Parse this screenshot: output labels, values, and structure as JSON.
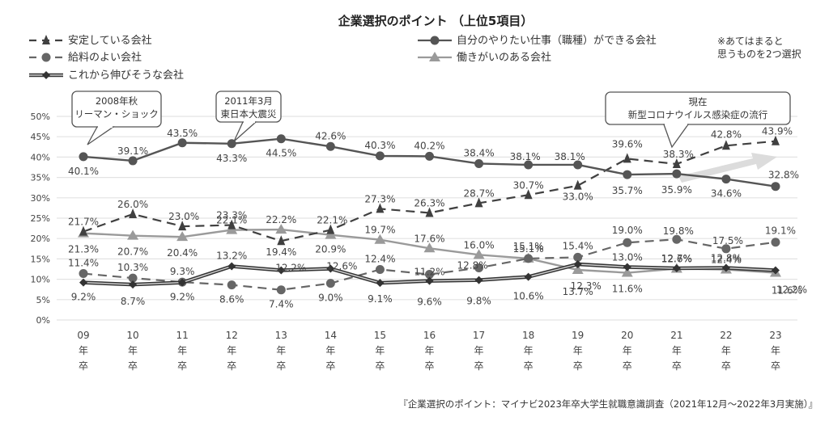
{
  "chart_data": {
    "type": "line",
    "title": "企業選択のポイント （上位5項目）",
    "note_lines": [
      "※あてはまると",
      "思うものを2つ選択"
    ],
    "source": "『企業選択のポイント：マイナビ2023年卒大学生就職意識調査（2021年12月～2022年3月実施）』",
    "ylim": [
      0,
      50
    ],
    "y_ticks": [
      "0%",
      "5%",
      "10%",
      "15%",
      "20%",
      "25%",
      "30%",
      "35%",
      "40%",
      "45%",
      "50%"
    ],
    "grid": true,
    "legend_position": "top",
    "categories": [
      [
        "09",
        "年",
        "卒"
      ],
      [
        "10",
        "年",
        "卒"
      ],
      [
        "11",
        "年",
        "卒"
      ],
      [
        "12",
        "年",
        "卒"
      ],
      [
        "13",
        "年",
        "卒"
      ],
      [
        "14",
        "年",
        "卒"
      ],
      [
        "15",
        "年",
        "卒"
      ],
      [
        "16",
        "年",
        "卒"
      ],
      [
        "17",
        "年",
        "卒"
      ],
      [
        "18",
        "年",
        "卒"
      ],
      [
        "19",
        "年",
        "卒"
      ],
      [
        "20",
        "年",
        "卒"
      ],
      [
        "21",
        "年",
        "卒"
      ],
      [
        "22",
        "年",
        "卒"
      ],
      [
        "23",
        "年",
        "卒"
      ]
    ],
    "series": [
      {
        "name": "安定している会社",
        "style": "dashed",
        "marker": "star",
        "color": "#404040",
        "values": [
          21.7,
          26.0,
          23.0,
          23.3,
          19.4,
          22.1,
          27.3,
          26.3,
          28.7,
          30.7,
          33.0,
          39.6,
          38.3,
          42.8,
          43.9
        ],
        "labels": [
          "21.7%",
          "26.0%",
          "23.0%",
          "23.3%",
          "19.4%",
          "22.1%",
          "27.3%",
          "26.3%",
          "28.7%",
          "30.7%",
          "33.0%",
          "39.6%",
          "38.3%",
          "42.8%",
          "43.9%"
        ]
      },
      {
        "name": "給料のよい会社",
        "style": "dashed",
        "marker": "circle",
        "color": "#666666",
        "values": [
          11.4,
          10.3,
          9.3,
          8.6,
          7.4,
          9.0,
          12.4,
          11.2,
          12.8,
          15.1,
          15.4,
          19.0,
          19.8,
          17.5,
          19.1
        ],
        "labels": [
          "11.4%",
          "10.3%",
          "9.3%",
          "8.6%",
          "7.4%",
          "9.0%",
          "12.4%",
          "11.2%",
          "12.8%",
          "15.1%",
          "15.4%",
          "19.0%",
          "19.8%",
          "17.5%",
          "19.1%"
        ]
      },
      {
        "name": "これから伸びそうな会社",
        "style": "double",
        "marker": "diamond",
        "color": "#333333",
        "values": [
          9.2,
          8.7,
          9.2,
          13.2,
          12.2,
          12.6,
          9.1,
          9.6,
          9.8,
          10.6,
          13.7,
          13.0,
          12.7,
          12.8,
          12.2
        ],
        "labels": [
          "9.2%",
          "8.7%",
          "9.2%",
          "13.2%",
          "12.2%",
          "12.6%",
          "9.1%",
          "9.6%",
          "9.8%",
          "10.6%",
          "13.7%",
          "13.0%",
          "12.7%",
          "12.8%",
          "12.2%"
        ]
      },
      {
        "name": "自分のやりたい仕事（職種）ができる会社",
        "style": "solid",
        "marker": "circle",
        "color": "#555555",
        "values": [
          40.1,
          39.1,
          43.5,
          43.3,
          44.5,
          42.6,
          40.3,
          40.2,
          38.4,
          38.1,
          38.1,
          35.7,
          35.9,
          34.6,
          32.8
        ],
        "labels": [
          "40.1%",
          "39.1%",
          "43.5%",
          "43.3%",
          "44.5%",
          "42.6%",
          "40.3%",
          "40.2%",
          "38.4%",
          "38.1%",
          "38.1%",
          "35.7%",
          "35.9%",
          "34.6%",
          "32.8%"
        ]
      },
      {
        "name": "働きがいのある会社",
        "style": "solid",
        "marker": "triangle",
        "color": "#9a9a9a",
        "values": [
          21.3,
          20.7,
          20.4,
          22.1,
          22.2,
          20.9,
          19.7,
          17.6,
          16.0,
          15.1,
          12.3,
          11.6,
          12.6,
          12.4,
          11.6
        ],
        "labels": [
          "21.3%",
          "20.7%",
          "20.4%",
          "22.1%",
          "22.2%",
          "20.9%",
          "19.7%",
          "17.6%",
          "16.0%",
          "15.1%",
          "12.3%",
          "11.6%",
          "12.6%",
          "12.4%",
          "11.6%"
        ]
      }
    ],
    "annotations": [
      {
        "lines": [
          "2008年秋",
          "リーマン・ショック"
        ],
        "category_index": 0
      },
      {
        "lines": [
          "2011年3月",
          "東日本大震災"
        ],
        "category_index": 3
      },
      {
        "lines": [
          "現在",
          "新型コロナウイルス感染症の流行"
        ],
        "category_index": 12
      }
    ]
  }
}
